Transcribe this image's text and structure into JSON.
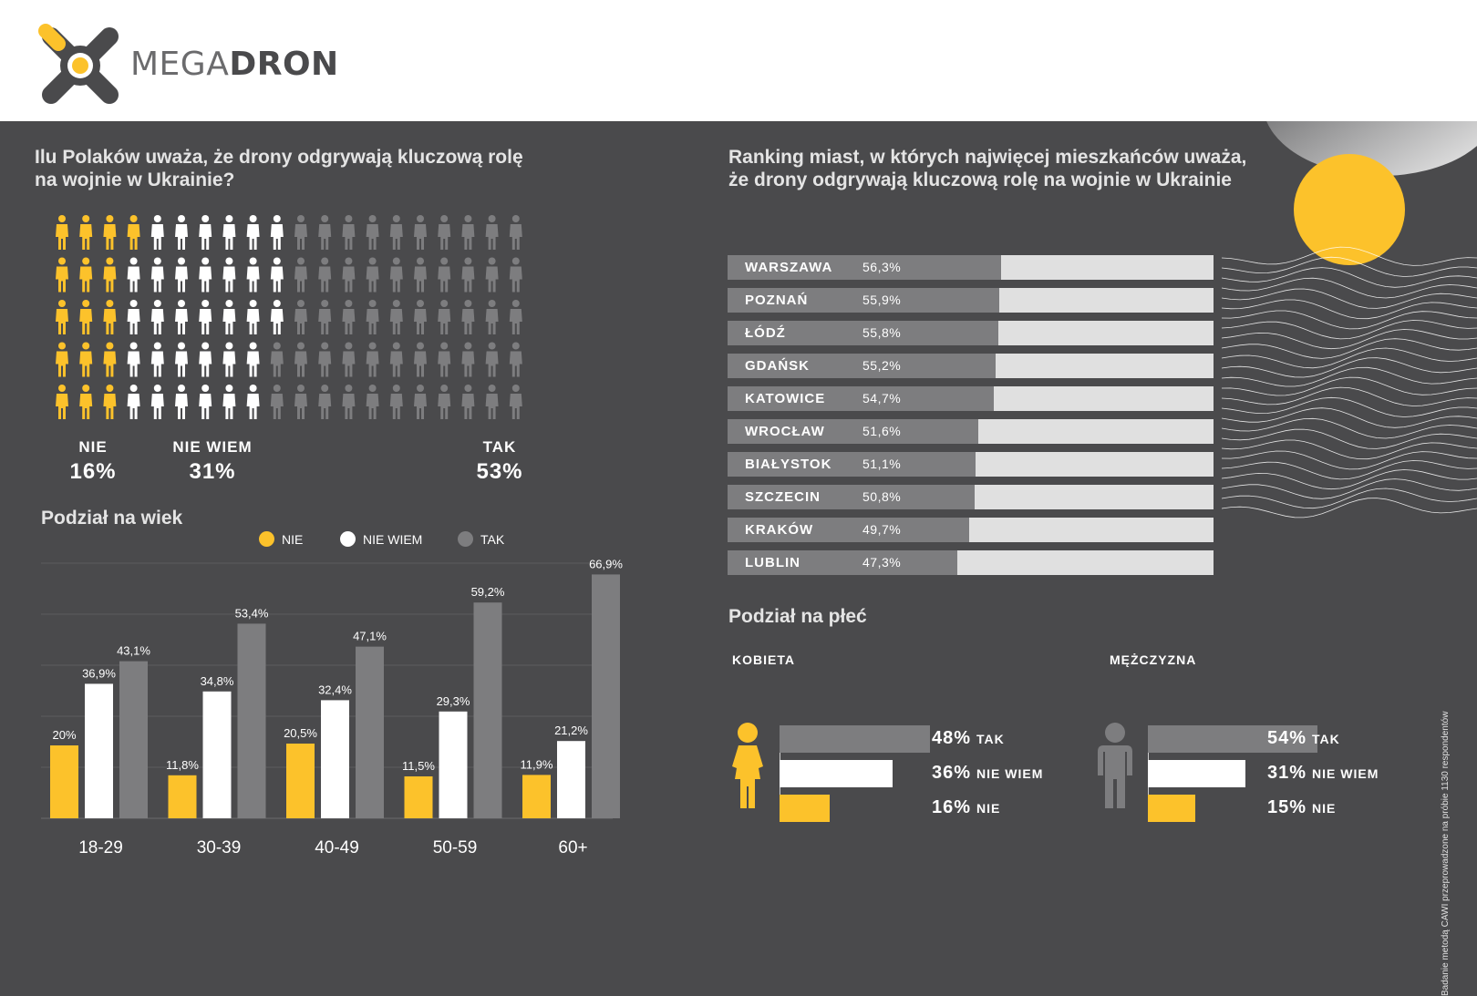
{
  "brand": {
    "name_light": "MEGA",
    "name_bold": "DRON"
  },
  "colors": {
    "yellow": "#fcc22b",
    "white": "#ffffff",
    "gray": "#7d7d7f",
    "bg": "#4a4a4c",
    "light": "#e0e0e0"
  },
  "question_title_line1": "Ilu Polaków uważa, że drony odgrywają kluczową rolę",
  "question_title_line2": "na wojnie w Ukrainie?",
  "answers": [
    {
      "label": "NIE",
      "value": "16%"
    },
    {
      "label": "NIE WIEM",
      "value": "31%"
    },
    {
      "label": "TAK",
      "value": "53%"
    }
  ],
  "pictogram": {
    "columns": 20,
    "rows": 5,
    "nie": 16,
    "nie_wiem": 31,
    "tak": 53
  },
  "age_section": {
    "title": "Podział na wiek",
    "legend": [
      "NIE",
      "NIE WIEM",
      "TAK"
    ]
  },
  "ranking_title_line1": "Ranking miast, w których najwięcej mieszkańców uważa,",
  "ranking_title_line2": "że drony odgrywają kluczową rolę na wojnie w Ukrainie",
  "cities": [
    {
      "name": "WARSZAWA",
      "value": 56.3,
      "label": "56,3%"
    },
    {
      "name": "POZNAŃ",
      "value": 55.9,
      "label": "55,9%"
    },
    {
      "name": "ŁÓDŹ",
      "value": 55.8,
      "label": "55,8%"
    },
    {
      "name": "GDAŃSK",
      "value": 55.2,
      "label": "55,2%"
    },
    {
      "name": "KATOWICE",
      "value": 54.7,
      "label": "54,7%"
    },
    {
      "name": "WROCŁAW",
      "value": 51.6,
      "label": "51,6%"
    },
    {
      "name": "BIAŁYSTOK",
      "value": 51.1,
      "label": "51,1%"
    },
    {
      "name": "SZCZECIN",
      "value": 50.8,
      "label": "50,8%"
    },
    {
      "name": "KRAKÓW",
      "value": 49.7,
      "label": "49,7%"
    },
    {
      "name": "LUBLIN",
      "value": 47.3,
      "label": "47,3%"
    }
  ],
  "gender_section": {
    "title": "Podział na płeć",
    "female": {
      "label": "KOBIETA",
      "rows": [
        {
          "pct": 48,
          "pct_label": "48%",
          "answer": "TAK"
        },
        {
          "pct": 36,
          "pct_label": "36%",
          "answer": "NIE WIEM"
        },
        {
          "pct": 16,
          "pct_label": "16%",
          "answer": "NIE"
        }
      ]
    },
    "male": {
      "label": "MĘŻCZYZNA",
      "rows": [
        {
          "pct": 54,
          "pct_label": "54%",
          "answer": "TAK"
        },
        {
          "pct": 31,
          "pct_label": "31%",
          "answer": "NIE WIEM"
        },
        {
          "pct": 15,
          "pct_label": "15%",
          "answer": "NIE"
        }
      ]
    }
  },
  "side_note": "Badanie metodą CAWI przeprowadzone na próbie 1130 respondentów",
  "chart_data": [
    {
      "type": "bar",
      "title": "Podział na wiek",
      "categories": [
        "18-29",
        "30-39",
        "40-49",
        "50-59",
        "60+"
      ],
      "series": [
        {
          "name": "NIE",
          "values": [
            20,
            11.8,
            20.5,
            11.5,
            11.9
          ],
          "labels": [
            "20%",
            "11,8%",
            "20,5%",
            "11,5%",
            "11,9%"
          ]
        },
        {
          "name": "NIE WIEM",
          "values": [
            36.9,
            34.8,
            32.4,
            29.3,
            21.2
          ],
          "labels": [
            "36,9%",
            "34,8%",
            "32,4%",
            "29,3%",
            "21,2%"
          ]
        },
        {
          "name": "TAK",
          "values": [
            43.1,
            53.4,
            47.1,
            59.2,
            66.9
          ],
          "labels": [
            "43,1%",
            "53,4%",
            "47,1%",
            "59,2%",
            "66,9%"
          ]
        }
      ],
      "ylim": [
        0,
        70
      ],
      "grid": true,
      "legend": "top"
    },
    {
      "type": "bar",
      "orientation": "horizontal",
      "title": "Ranking miast, w których najwięcej mieszkańców uważa, że drony odgrywają kluczową rolę na wojnie w Ukrainie",
      "categories": [
        "WARSZAWA",
        "POZNAŃ",
        "ŁÓDŹ",
        "GDAŃSK",
        "KATOWICE",
        "WROCŁAW",
        "BIAŁYSTOK",
        "SZCZECIN",
        "KRAKÓW",
        "LUBLIN"
      ],
      "values": [
        56.3,
        55.9,
        55.8,
        55.2,
        54.7,
        51.6,
        51.1,
        50.8,
        49.7,
        47.3
      ],
      "xlim": [
        0,
        100
      ]
    },
    {
      "type": "bar",
      "orientation": "horizontal",
      "title": "Podział na płeć",
      "categories": [
        "TAK",
        "NIE WIEM",
        "NIE"
      ],
      "series": [
        {
          "name": "KOBIETA",
          "values": [
            48,
            36,
            16
          ]
        },
        {
          "name": "MĘŻCZYZNA",
          "values": [
            54,
            31,
            15
          ]
        }
      ]
    }
  ]
}
